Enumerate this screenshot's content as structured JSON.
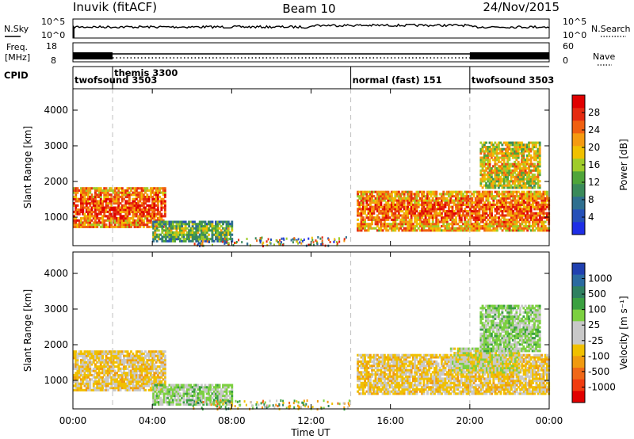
{
  "header": {
    "station": "Inuvik (fitACF)",
    "beam": "Beam 10",
    "date": "24/Nov/2015"
  },
  "strip_labels": {
    "nsky": "N.Sky",
    "nsky_tick_top": "10^5",
    "nsky_tick_bottom": "10^0",
    "nsearch": "N.Search",
    "nsearch_tick_top": "10^5",
    "nsearch_tick_bottom": "10^0",
    "freq_line1": "Freq.",
    "freq_line2": "[MHz]",
    "freq_tick_top": "18",
    "freq_tick_bottom": "8",
    "nave": "Nave",
    "nave_tick_top": "60",
    "nave_tick_bottom": "0",
    "cpid": "CPID"
  },
  "cpid_segments": [
    {
      "label": "twofsound 3503",
      "start_hour": 0,
      "end_hour": 2
    },
    {
      "label": "themis 3300",
      "start_hour": 2,
      "end_hour": 14
    },
    {
      "label": "normal (fast) 151",
      "start_hour": 14,
      "end_hour": 20
    },
    {
      "label": "twofsound 3503",
      "start_hour": 20,
      "end_hour": 24
    }
  ],
  "colorbars": {
    "power": {
      "label": "Power [dB]",
      "ticks": [
        "4",
        "8",
        "12",
        "16",
        "20",
        "24",
        "28"
      ],
      "colors": [
        "#1e2ee6",
        "#2550b8",
        "#2f6f8f",
        "#3a8a5a",
        "#4fa53a",
        "#9fcc2a",
        "#f0c000",
        "#f59a10",
        "#f06010",
        "#e52a10",
        "#e00000"
      ]
    },
    "velocity": {
      "label": "Velocity [m s⁻¹]",
      "ticks": [
        "1000",
        "500",
        "100",
        "25",
        "-25",
        "-100",
        "-500",
        "-1000"
      ],
      "colors": [
        "#2040b0",
        "#2a6aa0",
        "#2e8060",
        "#3aa040",
        "#7cd040",
        "#c8c8c8",
        "#c8c8c8",
        "#f0c000",
        "#f09a10",
        "#f06818",
        "#f03c10",
        "#e00000"
      ]
    }
  },
  "chart_data": [
    {
      "type": "heatmap",
      "name": "Power",
      "ylabel": "Slant Range [km]",
      "xlabel": "Time UT",
      "x_ticks": [
        "00:00",
        "04:00",
        "08:00",
        "12:00",
        "16:00",
        "20:00",
        "00:00"
      ],
      "y_ticks": [
        "1000",
        "2000",
        "3000",
        "4000"
      ],
      "xlim_hours": [
        0,
        24
      ],
      "ylim_km": [
        200,
        4600
      ],
      "colorbar_range_dB": [
        0,
        30
      ],
      "echo_regions": [
        {
          "t_start": 0.0,
          "t_end": 4.6,
          "r_min": 700,
          "r_max": 1800,
          "level_dB": 26
        },
        {
          "t_start": 4.0,
          "t_end": 8.0,
          "r_min": 300,
          "r_max": 900,
          "level_dB": 14
        },
        {
          "t_start": 14.3,
          "t_end": 24.0,
          "r_min": 600,
          "r_max": 1700,
          "level_dB": 25
        },
        {
          "t_start": 20.5,
          "t_end": 23.5,
          "r_min": 1800,
          "r_max": 3100,
          "level_dB": 20
        }
      ],
      "dashed_time_markers_hours": [
        2,
        14,
        20
      ]
    },
    {
      "type": "heatmap",
      "name": "Velocity",
      "ylabel": "Slant Range [km]",
      "xlabel": "Time UT",
      "x_ticks": [
        "00:00",
        "04:00",
        "08:00",
        "12:00",
        "16:00",
        "20:00",
        "00:00"
      ],
      "y_ticks": [
        "1000",
        "2000",
        "3000",
        "4000"
      ],
      "xlim_hours": [
        0,
        24
      ],
      "ylim_km": [
        200,
        4600
      ],
      "echo_regions": [
        {
          "t_start": 0.0,
          "t_end": 4.6,
          "r_min": 700,
          "r_max": 1800,
          "velocity_ms": -100
        },
        {
          "t_start": 4.0,
          "t_end": 8.0,
          "r_min": 300,
          "r_max": 900,
          "velocity_ms": 100
        },
        {
          "t_start": 14.3,
          "t_end": 24.0,
          "r_min": 600,
          "r_max": 1700,
          "velocity_ms": -100
        },
        {
          "t_start": 19.0,
          "t_end": 22.5,
          "r_min": 1200,
          "r_max": 1900,
          "velocity_ms": 0
        },
        {
          "t_start": 20.5,
          "t_end": 23.5,
          "r_min": 1800,
          "r_max": 3100,
          "velocity_ms": 100
        }
      ],
      "dashed_time_markers_hours": [
        2,
        14,
        20
      ]
    }
  ]
}
